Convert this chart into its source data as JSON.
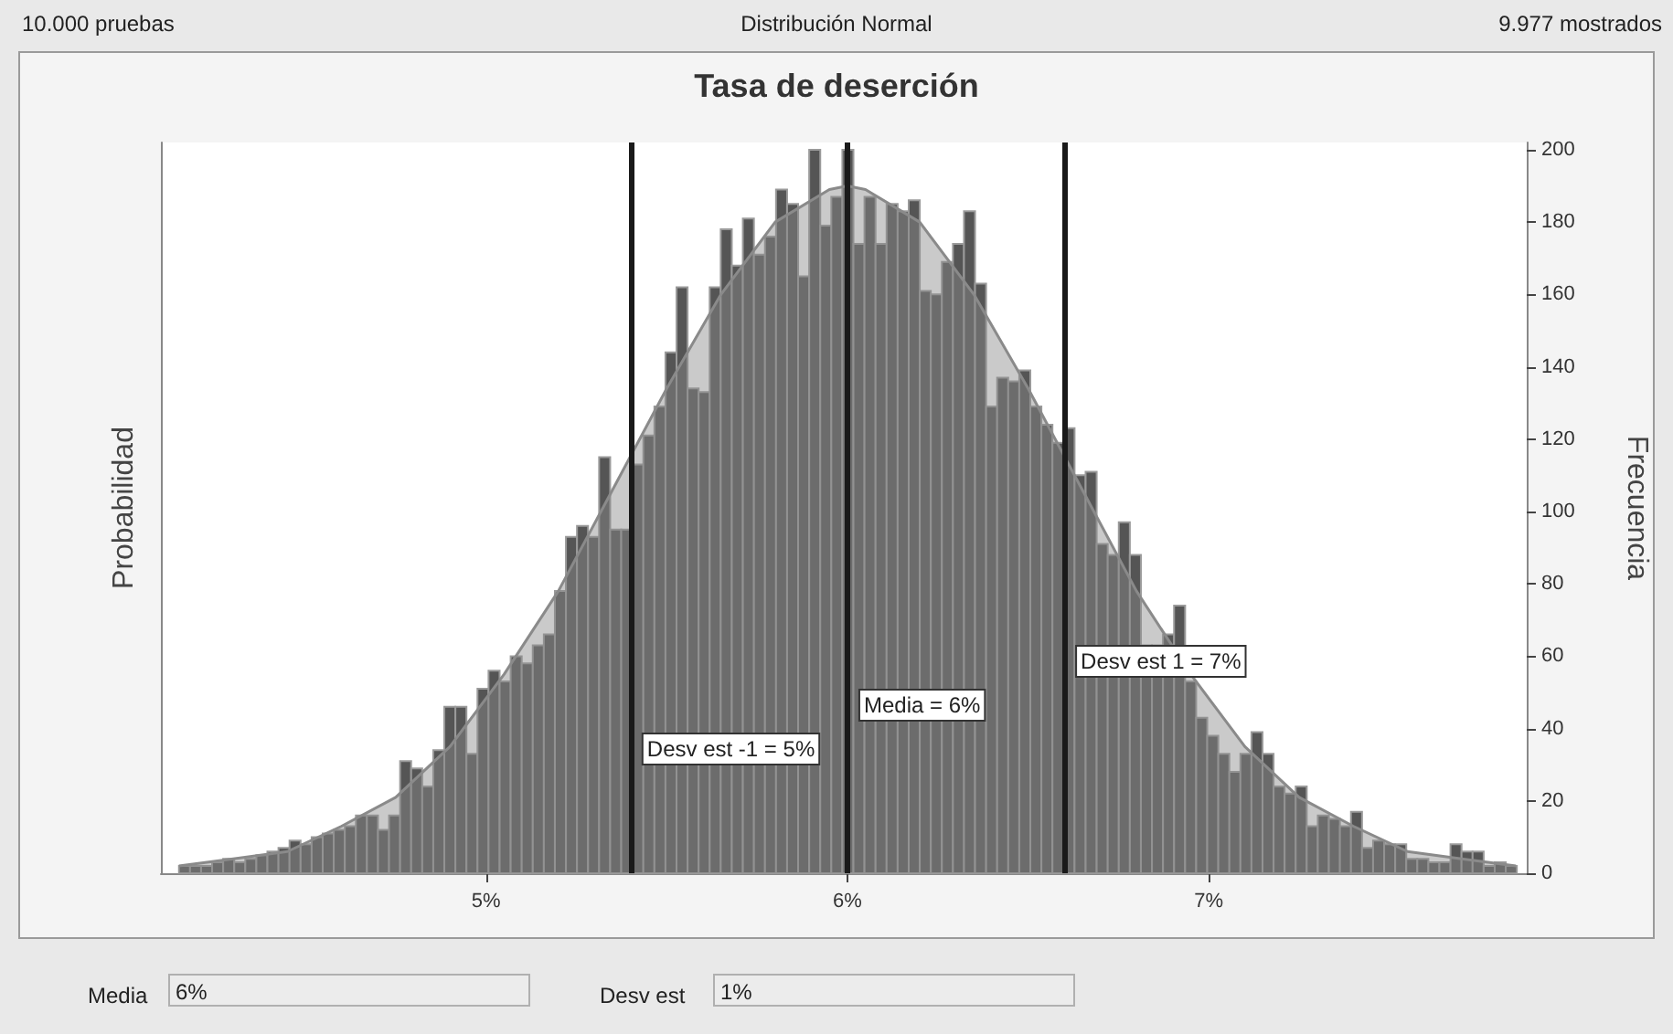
{
  "chart_data": {
    "type": "histogram",
    "title": "Tasa de deserción",
    "ylabel": "Frecuencia",
    "y2label": "Probabilidad",
    "annotations": [
      "10.000 pruebas",
      "Distribución Normal",
      "9.977 mostrados",
      "Media",
      "6%",
      "Desv est",
      "1%"
    ],
    "xlim": [
      4.1,
      7.88
    ],
    "xticks": [
      {
        "value": 5,
        "label": "5%"
      },
      {
        "value": 6,
        "label": "6%"
      },
      {
        "value": 7,
        "label": "7%"
      }
    ],
    "ylim": [
      0,
      202
    ],
    "yticks": [
      0,
      20,
      40,
      60,
      80,
      100,
      120,
      140,
      160,
      180,
      200
    ],
    "grid": false,
    "series": [
      {
        "color": "#555555",
        "bins": [
          4.15,
          4.1806,
          4.2112,
          4.2418,
          4.2724,
          4.303,
          4.3336,
          4.3642,
          4.3948,
          4.4254,
          4.456,
          4.4866,
          4.5172,
          4.5478,
          4.5784,
          4.609,
          4.6396,
          4.6702,
          4.7008,
          4.7314,
          4.762,
          4.7926,
          4.8232,
          4.8538,
          4.8844,
          4.915,
          4.9456,
          4.9762,
          5.0068,
          5.0374,
          5.068,
          5.0986,
          5.1292,
          5.1598,
          5.1904,
          5.221,
          5.2516,
          5.2822,
          5.3128,
          5.3434,
          5.374,
          5.4046,
          5.4352,
          5.4658,
          5.4964,
          5.527,
          5.5576,
          5.5882,
          5.6188,
          5.6494,
          5.68,
          5.7106,
          5.7412,
          5.7718,
          5.8024,
          5.833,
          5.8636,
          5.8942,
          5.9248,
          5.9554,
          5.986,
          6.0166,
          6.0472,
          6.0778,
          6.1084,
          6.139,
          6.1696,
          6.2002,
          6.2308,
          6.2614,
          6.292,
          6.3226,
          6.3532,
          6.3838,
          6.4144,
          6.445,
          6.4756,
          6.5062,
          6.5368,
          6.5674,
          6.598,
          6.6286,
          6.6592,
          6.6898,
          6.7204,
          6.751,
          6.7816,
          6.8122,
          6.8428,
          6.8734,
          6.904,
          6.9346,
          6.9652,
          6.9958,
          7.0264,
          7.057,
          7.0876,
          7.1182,
          7.1488,
          7.1794,
          7.21,
          7.2406,
          7.2712,
          7.3018,
          7.3324,
          7.363,
          7.3936,
          7.4242,
          7.4548,
          7.4854,
          7.516,
          7.5466,
          7.5772,
          7.6078,
          7.6384,
          7.669,
          7.6996,
          7.7302,
          7.7608,
          7.7914,
          7.822,
          7.8526
        ],
        "values": [
          2,
          2,
          2,
          3,
          4,
          3,
          4,
          5,
          6,
          7,
          9,
          8,
          10,
          11,
          12,
          13,
          16,
          16,
          12,
          16,
          31,
          29,
          24,
          34,
          46,
          46,
          33,
          51,
          56,
          53,
          60,
          58,
          63,
          66,
          78,
          93,
          96,
          93,
          115,
          95,
          95,
          113,
          121,
          129,
          144,
          162,
          134,
          133,
          162,
          178,
          168,
          181,
          171,
          176,
          189,
          185,
          165,
          200,
          179,
          187,
          200,
          174,
          187,
          174,
          185,
          183,
          186,
          161,
          160,
          169,
          174,
          183,
          163,
          129,
          137,
          136,
          139,
          129,
          124,
          119,
          123,
          110,
          111,
          91,
          88,
          97,
          88,
          63,
          63,
          66,
          74,
          53,
          43,
          38,
          33,
          28,
          33,
          39,
          33,
          24,
          22,
          24,
          13,
          16,
          15,
          13,
          17,
          7,
          9,
          8,
          8,
          4,
          4,
          3,
          3,
          8,
          6,
          6,
          2,
          3,
          2
        ]
      },
      {
        "type": "area",
        "color": "#8a8a8a",
        "x": [
          4.15,
          4.3,
          4.45,
          4.6,
          4.75,
          4.9,
          5.05,
          5.2,
          5.35,
          5.5,
          5.65,
          5.8,
          5.95,
          6.0,
          6.05,
          6.2,
          6.35,
          6.5,
          6.65,
          6.8,
          6.95,
          7.1,
          7.25,
          7.4,
          7.55,
          7.7,
          7.85
        ],
        "values": [
          2,
          4,
          6,
          13,
          21,
          35,
          55,
          78,
          106,
          134,
          160,
          180,
          189,
          190,
          189,
          180,
          160,
          134,
          106,
          78,
          55,
          35,
          21,
          13,
          6,
          4,
          2
        ]
      }
    ],
    "ref_lines": [
      {
        "axis": "x",
        "value": 5.4,
        "label": "Desv est -1 = 5%",
        "color": "#1a1a1a"
      },
      {
        "axis": "x",
        "value": 6.0,
        "label": "Media = 6%",
        "color": "#1a1a1a"
      },
      {
        "axis": "x",
        "value": 6.6,
        "label": "Desv est 1 = 7%",
        "color": "#1a1a1a"
      }
    ]
  }
}
